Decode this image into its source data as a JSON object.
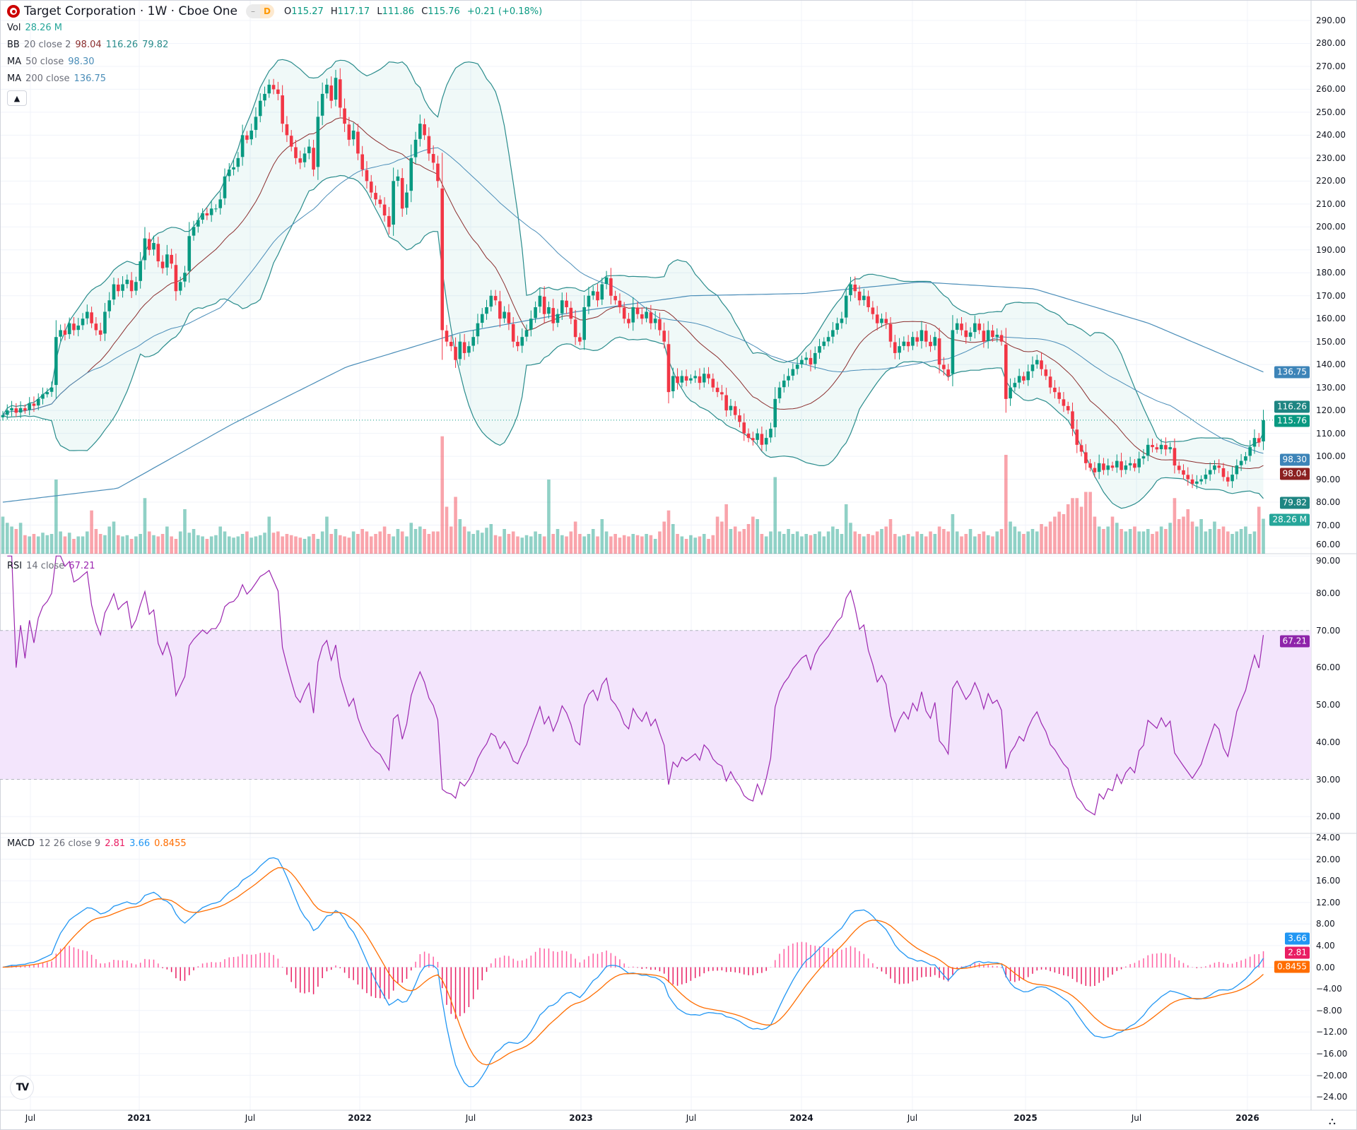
{
  "header": {
    "title": "Target Corporation · 1W · Cboe One",
    "pill_dash": "–",
    "pill_d": "D",
    "ohlc": {
      "o_label": "O",
      "o": "115.27",
      "h_label": "H",
      "h": "117.17",
      "l_label": "L",
      "l": "111.86",
      "c_label": "C",
      "c": "115.76",
      "change": "+0.21 (+0.18%)"
    }
  },
  "legends": {
    "vol": {
      "name": "Vol",
      "value": "28.26 M"
    },
    "bb": {
      "name": "BB",
      "params": "20 close 2",
      "basis": "98.04",
      "upper": "116.26",
      "lower": "79.82"
    },
    "ma50": {
      "name": "MA",
      "params": "50 close",
      "value": "98.30"
    },
    "ma200": {
      "name": "MA",
      "params": "200 close",
      "value": "136.75"
    },
    "rsi": {
      "name": "RSI",
      "params": "14 close",
      "value": "67.21"
    },
    "macd": {
      "name": "MACD",
      "params": "12 26 close 9",
      "hist": "2.81",
      "macd": "3.66",
      "signal": "0.8455"
    }
  },
  "collapse_icon": "chevron-up-icon",
  "axes": {
    "price_ticks": [
      "290.00",
      "280.00",
      "270.00",
      "260.00",
      "250.00",
      "240.00",
      "230.00",
      "220.00",
      "210.00",
      "200.00",
      "190.00",
      "180.00",
      "170.00",
      "160.00",
      "150.00",
      "140.00",
      "130.00",
      "120.00",
      "110.00",
      "100.00",
      "90.00",
      "80.00",
      "70.00",
      "60.00"
    ],
    "rsi_ticks": [
      "90.00",
      "80.00",
      "70.00",
      "60.00",
      "50.00",
      "40.00",
      "30.00",
      "20.00"
    ],
    "macd_ticks": [
      "24.00",
      "20.00",
      "16.00",
      "12.00",
      "8.00",
      "4.00",
      "0.00",
      "−4.00",
      "−8.00",
      "−12.00",
      "−16.00",
      "−20.00",
      "−24.00"
    ],
    "time_labels": [
      {
        "text": "Jul",
        "year": false
      },
      {
        "text": "2021",
        "year": true
      },
      {
        "text": "Jul",
        "year": false
      },
      {
        "text": "2022",
        "year": true
      },
      {
        "text": "Jul",
        "year": false
      },
      {
        "text": "2023",
        "year": true
      },
      {
        "text": "Jul",
        "year": false
      },
      {
        "text": "2024",
        "year": true
      },
      {
        "text": "Jul",
        "year": false
      },
      {
        "text": "2025",
        "year": true
      },
      {
        "text": "Jul",
        "year": false
      },
      {
        "text": "2026",
        "year": true
      }
    ]
  },
  "badges": {
    "ma200": "136.75",
    "bb_upper": "116.26",
    "last": "115.76",
    "ma50": "98.30",
    "bb_basis": "98.04",
    "bb_lower": "79.82",
    "volume": "28.26 M",
    "rsi": "67.21",
    "macd": "3.66",
    "hist": "2.81",
    "signal": "0.8455"
  },
  "colors": {
    "up": "#089981",
    "down": "#f23645",
    "bb": "#2a8c8c",
    "bb_basis": "#8b2e2e",
    "ma50": "#4a8db8",
    "ma200": "#4a8db8",
    "rsi": "#9c27b0",
    "rsi_band": "#f3e5fc",
    "macd": "#2196f3",
    "signal": "#ff6d00",
    "hist_pos": "#e91e63",
    "hist_neg": "#e91e63"
  },
  "chart_data": {
    "type": "candlestick",
    "interval": "1W",
    "price_range": [
      60,
      290
    ],
    "weekly_close": [
      118,
      120,
      121,
      119,
      121,
      120,
      123,
      122,
      125,
      127,
      128,
      130,
      152,
      155,
      153,
      158,
      155,
      157,
      160,
      163,
      158,
      155,
      153,
      163,
      168,
      175,
      172,
      175,
      177,
      172,
      176,
      185,
      195,
      190,
      193,
      185,
      182,
      188,
      184,
      172,
      176,
      180,
      196,
      200,
      203,
      206,
      205,
      208,
      208,
      212,
      222,
      225,
      226,
      230,
      240,
      238,
      242,
      248,
      255,
      258,
      262,
      260,
      258,
      245,
      240,
      235,
      230,
      228,
      232,
      235,
      225,
      248,
      258,
      262,
      255,
      265,
      252,
      245,
      238,
      242,
      232,
      225,
      220,
      215,
      212,
      210,
      205,
      200,
      220,
      222,
      208,
      215,
      230,
      238,
      245,
      240,
      232,
      228,
      220,
      155,
      150,
      148,
      142,
      150,
      145,
      148,
      152,
      158,
      162,
      165,
      170,
      168,
      160,
      163,
      158,
      150,
      148,
      152,
      155,
      160,
      165,
      170,
      162,
      165,
      158,
      162,
      168,
      165,
      160,
      152,
      150,
      165,
      170,
      172,
      168,
      175,
      178,
      170,
      168,
      165,
      160,
      158,
      165,
      162,
      160,
      163,
      158,
      160,
      155,
      150,
      128,
      135,
      132,
      135,
      133,
      134,
      135,
      132,
      136,
      134,
      130,
      128,
      127,
      120,
      122,
      118,
      115,
      110,
      108,
      107,
      110,
      105,
      108,
      112,
      125,
      130,
      133,
      135,
      138,
      140,
      142,
      143,
      140,
      145,
      148,
      150,
      152,
      155,
      158,
      160,
      170,
      175,
      172,
      168,
      170,
      165,
      162,
      158,
      160,
      158,
      150,
      145,
      148,
      150,
      148,
      152,
      150,
      155,
      150,
      148,
      152,
      140,
      138,
      135,
      155,
      158,
      155,
      152,
      154,
      158,
      155,
      150,
      155,
      152,
      153,
      150,
      125,
      130,
      132,
      135,
      133,
      137,
      140,
      142,
      138,
      135,
      130,
      128,
      125,
      122,
      120,
      112,
      105,
      102,
      97,
      95,
      93,
      97,
      94,
      96,
      95,
      98,
      94,
      96,
      97,
      95,
      99,
      100,
      105,
      104,
      103,
      105,
      103,
      104,
      96,
      94,
      92,
      90,
      88,
      89,
      90,
      92,
      94,
      96,
      95,
      91,
      89,
      92,
      96,
      98,
      100,
      104,
      108,
      106,
      115.76
    ],
    "weekly_volume_millions": [
      30,
      25,
      22,
      20,
      25,
      15,
      14,
      16,
      14,
      17,
      15,
      16,
      60,
      18,
      14,
      17,
      12,
      14,
      14,
      18,
      35,
      20,
      16,
      15,
      22,
      26,
      15,
      14,
      15,
      12,
      14,
      16,
      45,
      18,
      15,
      14,
      16,
      22,
      14,
      12,
      18,
      36,
      17,
      20,
      15,
      14,
      12,
      14,
      15,
      22,
      18,
      14,
      13,
      14,
      16,
      18,
      13,
      14,
      15,
      17,
      30,
      17,
      18,
      14,
      16,
      15,
      14,
      13,
      12,
      14,
      16,
      12,
      18,
      30,
      16,
      20,
      15,
      14,
      13,
      18,
      16,
      20,
      18,
      14,
      16,
      18,
      22,
      16,
      14,
      20,
      18,
      14,
      25,
      20,
      22,
      20,
      16,
      18,
      18,
      95,
      38,
      22,
      46,
      28,
      22,
      18,
      16,
      19,
      17,
      21,
      24,
      15,
      14,
      20,
      16,
      18,
      14,
      13,
      15,
      14,
      18,
      16,
      14,
      60,
      16,
      20,
      15,
      14,
      18,
      26,
      16,
      14,
      16,
      20,
      14,
      28,
      18,
      14,
      16,
      13,
      15,
      14,
      16,
      15,
      14,
      16,
      15,
      12,
      18,
      26,
      35,
      24,
      16,
      14,
      12,
      15,
      13,
      14,
      16,
      12,
      15,
      30,
      26,
      40,
      20,
      22,
      18,
      20,
      24,
      30,
      28,
      16,
      14,
      18,
      62,
      18,
      16,
      20,
      16,
      18,
      14,
      16,
      15,
      16,
      18,
      14,
      18,
      22,
      20,
      16,
      40,
      25,
      18,
      16,
      14,
      16,
      15,
      18,
      20,
      22,
      28,
      16,
      14,
      15,
      16,
      14,
      18,
      16,
      14,
      18,
      16,
      22,
      20,
      18,
      32,
      18,
      14,
      16,
      20,
      14,
      16,
      18,
      15,
      14,
      18,
      20,
      80,
      26,
      22,
      18,
      16,
      18,
      20,
      18,
      24,
      22,
      26,
      30,
      34,
      32,
      40,
      45,
      45,
      38,
      50,
      50,
      30,
      22,
      20,
      22,
      30,
      25,
      20,
      18,
      20,
      22,
      18,
      18,
      20,
      16,
      18,
      22,
      20,
      25,
      45,
      28,
      30,
      36,
      26,
      22,
      28,
      18,
      20,
      26,
      20,
      22,
      18,
      16,
      18,
      20,
      22,
      16,
      18,
      38,
      28.26
    ],
    "ma200_points": [
      {
        "date": "2020-06",
        "value": 80
      },
      {
        "date": "2021-01",
        "value": 86
      },
      {
        "date": "2021-07",
        "value": 114
      },
      {
        "date": "2022-01",
        "value": 139
      },
      {
        "date": "2022-07",
        "value": 154
      },
      {
        "date": "2023-01",
        "value": 163
      },
      {
        "date": "2023-07",
        "value": 170
      },
      {
        "date": "2024-01",
        "value": 171
      },
      {
        "date": "2024-07",
        "value": 176
      },
      {
        "date": "2025-01",
        "value": 173
      },
      {
        "date": "2025-07",
        "value": 158
      },
      {
        "date": "2026-01",
        "value": 136.75
      }
    ],
    "rsi_levels": [
      70,
      30
    ],
    "rsi_range": [
      20,
      90
    ],
    "macd_range": [
      -24,
      24
    ]
  },
  "settings_icon": "settings-hexagon-icon",
  "brand_icon": "tradingview-logo-icon"
}
